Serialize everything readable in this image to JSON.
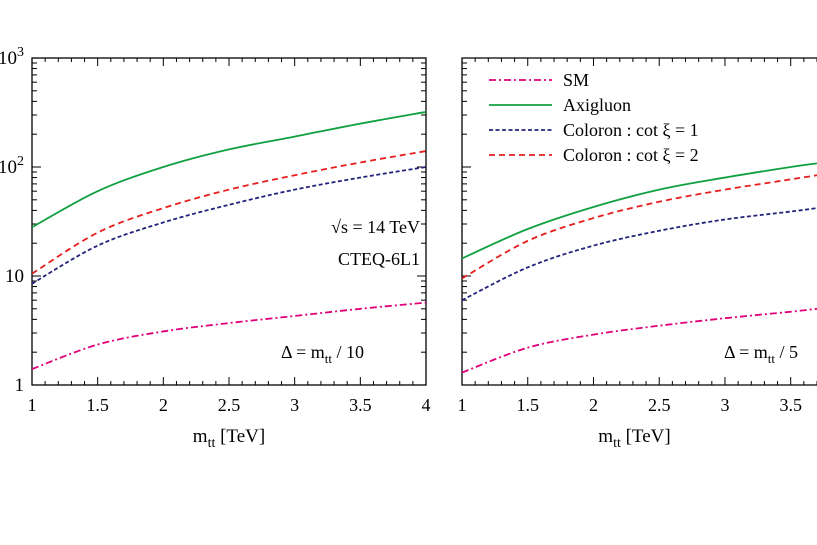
{
  "chart_data": [
    {
      "type": "line",
      "xlabel": "m",
      "xlabel_sub": "tt",
      "xlabel_unit": "[TeV]",
      "xlim": [
        1,
        4
      ],
      "ylim": [
        1,
        1000
      ],
      "yscale": "log",
      "x_ticks": [
        "1",
        "1.5",
        "2",
        "2.5",
        "3",
        "3.5",
        "4"
      ],
      "y_ticks": [
        {
          "base": "1",
          "exp": ""
        },
        {
          "base": "10",
          "exp": ""
        },
        {
          "base": "10",
          "exp": "2"
        },
        {
          "base": "10",
          "exp": "3"
        }
      ],
      "annotations": {
        "energy": "√s = 14 TeV",
        "pdf": "CTEQ-6L1",
        "delta_pre": "Δ = m",
        "delta_sub": "tt",
        "delta_post": " / 10"
      },
      "x": [
        1,
        1.5,
        2,
        2.5,
        3,
        3.5,
        4
      ],
      "series": [
        {
          "key": "sm",
          "values": [
            1.4,
            2.35,
            3.1,
            3.7,
            4.3,
            5.0,
            5.7
          ]
        },
        {
          "key": "axigluon",
          "values": [
            28,
            60,
            100,
            145,
            190,
            250,
            320
          ]
        },
        {
          "key": "col1",
          "values": [
            8.5,
            19,
            31,
            45,
            62,
            80,
            100
          ]
        },
        {
          "key": "col2",
          "values": [
            10.5,
            25,
            42,
            62,
            84,
            110,
            140
          ]
        }
      ]
    },
    {
      "type": "line",
      "xlabel": "m",
      "xlabel_sub": "tt",
      "xlabel_unit": "[TeV]",
      "xlim": [
        1,
        3.7
      ],
      "ylim": [
        1,
        1000
      ],
      "yscale": "log",
      "x_ticks": [
        "1",
        "1.5",
        "2",
        "2.5",
        "3",
        "3.5"
      ],
      "annotations": {
        "delta_pre": "Δ = m",
        "delta_sub": "tt",
        "delta_post": " / 5"
      },
      "legend": [
        "SM",
        "Axigluon",
        "Coloron : cot ξ = 1",
        "Coloron : cot ξ = 2"
      ],
      "legend_placement": "top-left",
      "x": [
        1,
        1.5,
        2,
        2.5,
        3,
        3.5,
        3.7
      ],
      "series": [
        {
          "key": "sm",
          "name": "SM",
          "values": [
            1.3,
            2.2,
            2.9,
            3.5,
            4.1,
            4.7,
            5.0
          ]
        },
        {
          "key": "axigluon",
          "name": "Axigluon",
          "values": [
            14.5,
            27,
            43,
            62,
            80,
            100,
            108
          ]
        },
        {
          "key": "col1",
          "name": "Coloron : cot ξ = 1",
          "values": [
            6,
            12,
            19,
            26,
            33,
            39,
            42
          ]
        },
        {
          "key": "col2",
          "name": "Coloron : cot ξ = 2",
          "values": [
            9.5,
            21,
            34,
            48,
            62,
            77,
            84
          ]
        }
      ]
    }
  ],
  "colors": {
    "sm": "#e0007a",
    "axigluon": "#10a040",
    "col1": "#23237a",
    "col2": "#e61e1e"
  }
}
